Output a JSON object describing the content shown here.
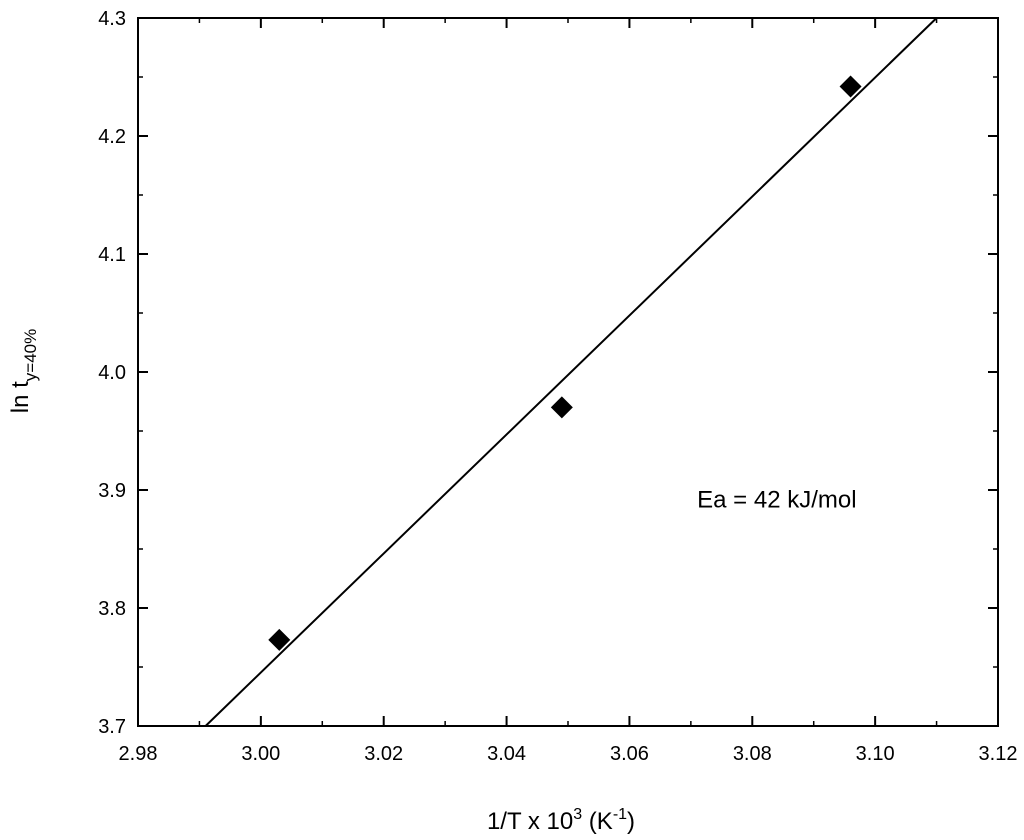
{
  "chart_data": {
    "type": "scatter",
    "title": "",
    "xlabel": {
      "text": "1/T x 10",
      "sup": "3",
      "text2": " (K",
      "sup2": "-1",
      "text3": ")"
    },
    "ylabel": {
      "text": "ln t",
      "sub": "y=40%"
    },
    "xlim": [
      2.98,
      3.12
    ],
    "ylim": [
      3.7,
      4.3
    ],
    "xticks": [
      "2.98",
      "3.00",
      "3.02",
      "3.04",
      "3.06",
      "3.08",
      "3.10",
      "3.12"
    ],
    "yticks": [
      "3.7",
      "3.8",
      "3.9",
      "4.0",
      "4.1",
      "4.2",
      "4.3"
    ],
    "grid": false,
    "series": [
      {
        "marker": "diamond",
        "color": "#000000",
        "points": [
          {
            "x": 3.003,
            "y": 3.773
          },
          {
            "x": 3.049,
            "y": 3.97
          },
          {
            "x": 3.096,
            "y": 4.242
          }
        ]
      }
    ],
    "fit_line": {
      "color": "#000000",
      "x": [
        2.991,
        3.11
      ],
      "y": [
        3.7,
        4.3
      ]
    },
    "annotation": {
      "text": "Ea = 42 kJ/mol",
      "x": 3.084,
      "y": 3.885
    }
  }
}
